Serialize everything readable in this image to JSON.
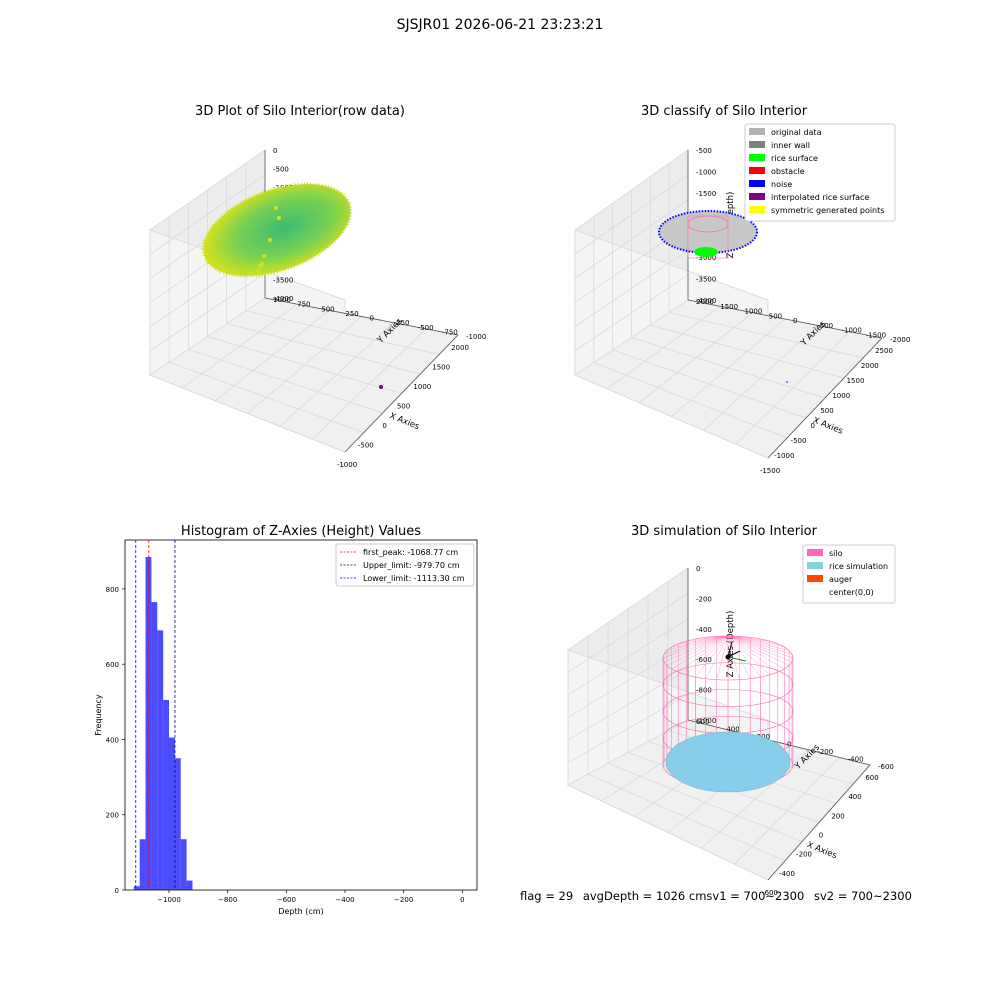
{
  "figure": {
    "suptitle": "SJSJR01 2026-06-21 23:23:21"
  },
  "colors": {
    "pane_fill": "#f2f2f2",
    "grid": "#d6d6d6",
    "pink": "#ff69b4",
    "sky": "#87ceeb",
    "green": "#00ff00",
    "blue": "#0000ff",
    "purple": "#800080",
    "red": "#ff0000"
  },
  "chart_data": [
    {
      "type": "scatter",
      "title": "3D Plot of Silo Interior(row data)",
      "xlabel": "X Axies",
      "ylabel": "Y Axies",
      "zlabel": "Z Axies (Depth)",
      "xticks": [
        "-1000",
        "-500",
        "0",
        "500",
        "1000",
        "1500",
        "2000"
      ],
      "yticks": [
        "-1000",
        "-750",
        "-500",
        "-250",
        "0",
        "250",
        "500",
        "750",
        "1000"
      ],
      "zticks": [
        "0",
        "-500",
        "-1000",
        "-1500",
        "-2000",
        "-2500",
        "-3000",
        "-3500",
        "-4000"
      ],
      "colormap": "viridis (depth)",
      "grid": true
    },
    {
      "type": "scatter",
      "title": "3D classify of Silo Interior",
      "xlabel": "X Axies",
      "ylabel": "Y Axies",
      "zlabel": "Z Axies (Depth)",
      "xticks": [
        "-1500",
        "-1000",
        "-500",
        "0",
        "500",
        "1000",
        "1500",
        "2000",
        "2500"
      ],
      "yticks": [
        "-2000",
        "-1500",
        "-1000",
        "-500",
        "0",
        "500",
        "1000",
        "1500",
        "2000"
      ],
      "zticks": [
        "-500",
        "-1000",
        "-1500",
        "-2000",
        "-2500",
        "-3000",
        "-3500",
        "-4000"
      ],
      "legend_position": "top-right",
      "legend": [
        {
          "label": "original data",
          "color": "#b3b3b3"
        },
        {
          "label": "inner wall",
          "color": "#808080"
        },
        {
          "label": "rice surface",
          "color": "#00ff00"
        },
        {
          "label": "obstacle",
          "color": "#ff0000"
        },
        {
          "label": "noise",
          "color": "#0000ff"
        },
        {
          "label": "interpolated rice surface",
          "color": "#800080"
        },
        {
          "label": "symmetric generated points",
          "color": "#ffff00"
        }
      ],
      "grid": true
    },
    {
      "type": "bar",
      "title": "Histogram of Z-Axies (Height) Values",
      "xlabel": "Depth (cm)",
      "ylabel": "Frequency",
      "xlim": [
        -1150,
        50
      ],
      "ylim": [
        0,
        930
      ],
      "xticks": [
        -1000,
        -800,
        -600,
        -400,
        -200,
        0
      ],
      "yticks": [
        0,
        200,
        400,
        600,
        800
      ],
      "bin_width": 20,
      "bins": [
        {
          "x": -1120,
          "value": 10
        },
        {
          "x": -1100,
          "value": 135
        },
        {
          "x": -1080,
          "value": 885
        },
        {
          "x": -1060,
          "value": 765
        },
        {
          "x": -1040,
          "value": 690
        },
        {
          "x": -1020,
          "value": 505
        },
        {
          "x": -1000,
          "value": 405
        },
        {
          "x": -980,
          "value": 350
        },
        {
          "x": -960,
          "value": 135
        },
        {
          "x": -940,
          "value": 25
        }
      ],
      "bar_color": "#0000ff",
      "lines": [
        {
          "label": "first_peak: -1068.77 cm",
          "x": -1068.77,
          "color": "#ff0000"
        },
        {
          "label": "Upper_limit: -979.70 cm",
          "x": -979.7,
          "color": "#00008b"
        },
        {
          "label": "Lower_limit: -1113.30 cm",
          "x": -1113.3,
          "color": "#0000ff"
        }
      ],
      "legend_position": "top-right"
    },
    {
      "type": "wireframe",
      "title": "3D simulation of Silo Interior",
      "xlabel": "X Axies",
      "ylabel": "Y Axies",
      "zlabel": "Z Axies (Depth)",
      "xticks": [
        "-600",
        "-400",
        "-200",
        "0",
        "200",
        "400",
        "600"
      ],
      "yticks": [
        "-600",
        "-400",
        "-200",
        "0",
        "200",
        "400",
        "600"
      ],
      "zticks": [
        "0",
        "-200",
        "-400",
        "-600",
        "-800",
        "-1000"
      ],
      "legend_position": "top-right",
      "legend": [
        {
          "label": "silo",
          "color": "#ff69b4"
        },
        {
          "label": "rice simulation",
          "color": "#87ceeb"
        },
        {
          "label": "auger",
          "color": "#ff4500"
        },
        {
          "label": "center(0,0)",
          "color": "#000000"
        }
      ],
      "grid": true
    }
  ],
  "footer": {
    "flag": "flag = 29",
    "avg": "avgDepth = 1026 cmsv1 = 700~2300",
    "sv2": "sv2 = 700~2300"
  }
}
